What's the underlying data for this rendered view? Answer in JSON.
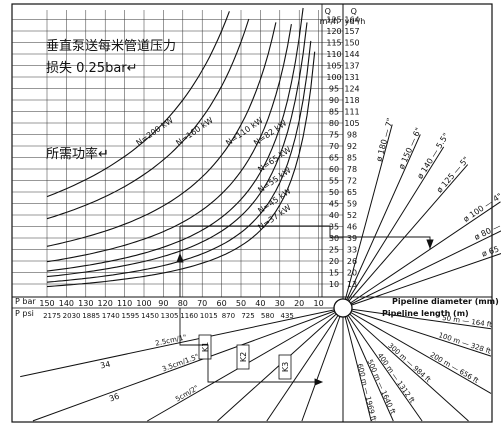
{
  "notes": {
    "line1": "垂直泵送每米管道压力",
    "line2": "损失 0.25bar↵",
    "line3": "所需功率↵"
  },
  "headers": {
    "q_m3h": "Q\nm³/h",
    "q_yd3h": "Q\nyd³/h",
    "p_bar": "P bar",
    "p_psi": "P psi",
    "pipe_diameter": "Pipeline diameter (mm)",
    "pipe_length": "Pipeline length (m)"
  },
  "axes": {
    "p_bar_ticks": [
      "150",
      "140",
      "130",
      "120",
      "110",
      "100",
      "90",
      "80",
      "70",
      "60",
      "50",
      "40",
      "30",
      "20",
      "10"
    ],
    "p_psi_ticks": [
      "2175",
      "2030",
      "1885",
      "1740",
      "1595",
      "1450",
      "1305",
      "1160",
      "1015",
      "870",
      "725",
      "580",
      "435"
    ],
    "q_m3h_ticks": [
      "10",
      "15",
      "20",
      "25",
      "30",
      "35",
      "40",
      "45",
      "50",
      "55",
      "60",
      "65",
      "70",
      "75",
      "80",
      "85",
      "90",
      "95",
      "100",
      "105",
      "110",
      "115",
      "120",
      "125"
    ],
    "q_yd3h_ticks": [
      "13",
      "20",
      "26",
      "33",
      "39",
      "46",
      "52",
      "59",
      "65",
      "72",
      "78",
      "85",
      "92",
      "98",
      "105",
      "111",
      "118",
      "124",
      "131",
      "137",
      "144",
      "150",
      "157",
      "164"
    ]
  },
  "power_curves": [
    "N=200 kW",
    "N=160 kW",
    "N=110 kW",
    "N=82 kW",
    "N=65 kW",
    "N=55 kW",
    "N=45 kW",
    "N=37 kW"
  ],
  "pipe_diameters": [
    "ø 180 — 7\"",
    "ø 150 — 6\"",
    "ø 140 — 5.5\"",
    "ø 125 — 5\"",
    "ø 100 — 4\"",
    "ø 80 — 3\"",
    "ø 65 — 2.5\""
  ],
  "pipe_lengths": [
    "50 m — 164 ft",
    "100 m — 328 ft",
    "200 m — 656 ft",
    "300 m — 984 ft",
    "400 m — 1312 ft",
    "500 m — 1640 ft",
    "600 m — 1969 ft"
  ],
  "cylinders": [
    {
      "a": "34",
      "b": "2.5cm/1\""
    },
    {
      "a": "36",
      "b": "3.5cm/1.5\""
    },
    {
      "a": "38",
      "b": "5cm/2\""
    },
    {
      "a": "40",
      "b": "6cm/2.5\""
    },
    {
      "a": "44",
      "b": "8.5cm/3.5\""
    },
    {
      "a": "50",
      "b": "12cm/5\""
    }
  ],
  "k_labels": [
    "K1",
    "K2",
    "K3"
  ]
}
